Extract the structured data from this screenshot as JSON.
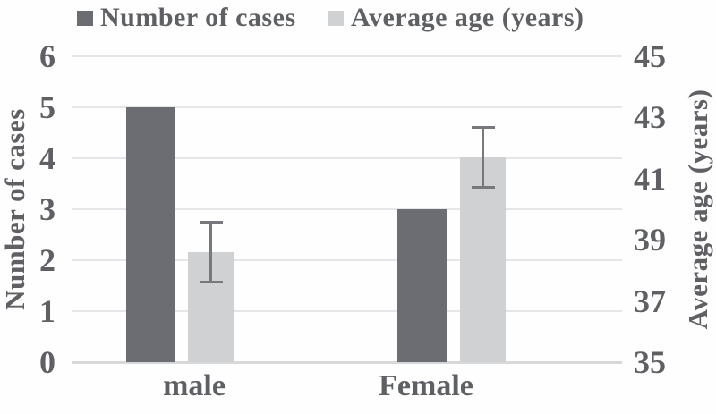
{
  "legend": {
    "items": [
      {
        "label": "Number of cases",
        "swatch_color": "#6b6d72"
      },
      {
        "label": "Average age (years)",
        "swatch_color": "#d0d1d3"
      }
    ]
  },
  "chart_data": {
    "type": "bar",
    "categories": [
      "male",
      "Female"
    ],
    "series": [
      {
        "name": "Number of cases",
        "axis": "left",
        "values": [
          5,
          3
        ],
        "color": "#6b6d72"
      },
      {
        "name": "Average age (years)",
        "axis": "right",
        "values": [
          38.6,
          41.7
        ],
        "error_bars": [
          1.0,
          1.0
        ],
        "color": "#d0d1d3",
        "error_color": "#76787c"
      }
    ],
    "left_axis": {
      "label": "Number of cases",
      "range": [
        0,
        6
      ],
      "ticks": [
        0,
        1,
        2,
        3,
        4,
        5,
        6
      ]
    },
    "right_axis": {
      "label": "Average age (years)",
      "range": [
        35,
        45
      ],
      "ticks": [
        35,
        37,
        39,
        41,
        43,
        45
      ]
    },
    "grid": true,
    "legend_position": "top",
    "colors": {
      "grid": "#e5e6e8",
      "baseline": "#d7d8da",
      "text": "#5e6064"
    }
  }
}
